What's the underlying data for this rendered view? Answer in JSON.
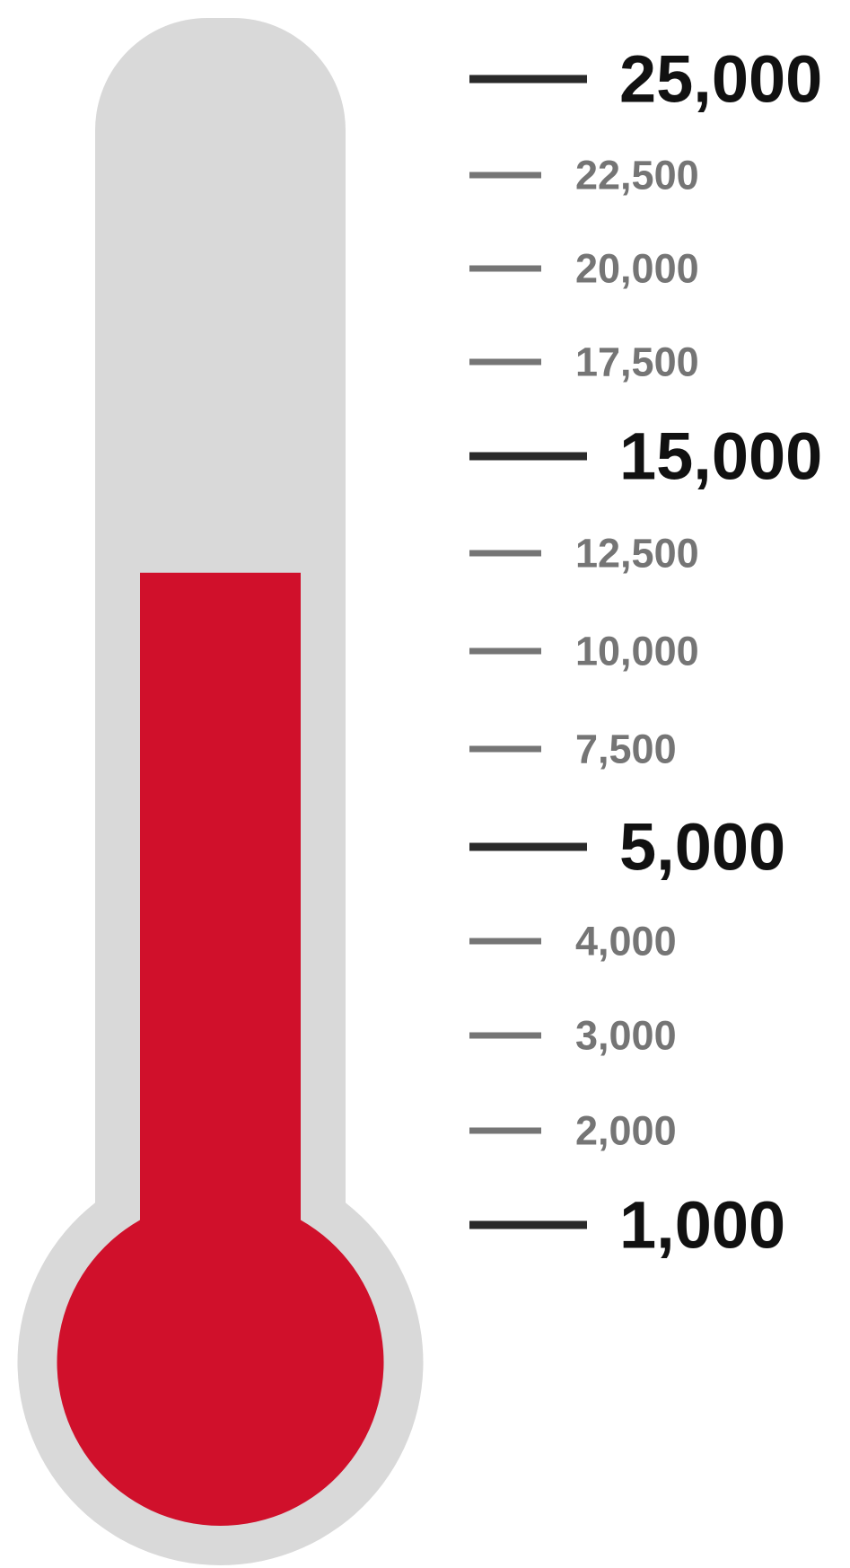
{
  "chart_data": {
    "type": "thermometer",
    "value": 12000,
    "colors": {
      "tube": "#d9d9d9",
      "fill": "#d0102b",
      "major_tick": "#2a2a2a",
      "minor_tick": "#757575",
      "major_label": "#111111",
      "minor_label": "#757575",
      "background": "#ffffff"
    },
    "ticks": [
      {
        "value": 25000,
        "label": "25,000",
        "major": true
      },
      {
        "value": 22500,
        "label": "22,500",
        "major": false
      },
      {
        "value": 20000,
        "label": "20,000",
        "major": false
      },
      {
        "value": 17500,
        "label": "17,500",
        "major": false
      },
      {
        "value": 15000,
        "label": "15,000",
        "major": true
      },
      {
        "value": 12500,
        "label": "12,500",
        "major": false
      },
      {
        "value": 10000,
        "label": "10,000",
        "major": false
      },
      {
        "value": 7500,
        "label": "7,500",
        "major": false
      },
      {
        "value": 5000,
        "label": "5,000",
        "major": true
      },
      {
        "value": 4000,
        "label": "4,000",
        "major": false
      },
      {
        "value": 3000,
        "label": "3,000",
        "major": false
      },
      {
        "value": 2000,
        "label": "2,000",
        "major": false
      },
      {
        "value": 1000,
        "label": "1,000",
        "major": true
      }
    ]
  }
}
